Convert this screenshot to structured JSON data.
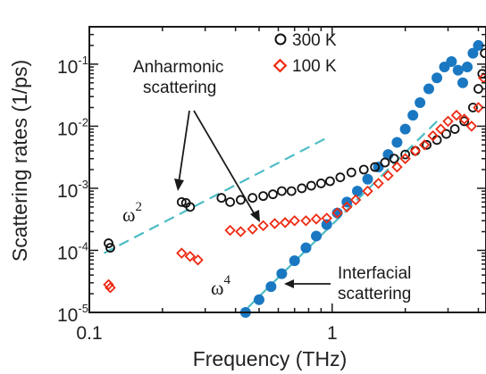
{
  "chart_data": {
    "type": "scatter",
    "xscale": "log",
    "yscale": "log",
    "xlim": [
      0.1,
      4.3
    ],
    "ylim": [
      1e-05,
      0.4
    ],
    "xlabel": "Frequency (THz)",
    "ylabel": "Scattering rates (1/ps)",
    "x_tick_labels": [
      "0.1",
      "1"
    ],
    "y_tick_labels": [
      {
        "base": "10",
        "exp": "-5"
      },
      {
        "base": "10",
        "exp": "-4"
      },
      {
        "base": "10",
        "exp": "-3"
      },
      {
        "base": "10",
        "exp": "-2"
      },
      {
        "base": "10",
        "exp": "-1"
      }
    ],
    "legend": {
      "position": "top-center"
    },
    "series": [
      {
        "name": "300 K",
        "marker": "open-circle",
        "color": "#111111",
        "points": [
          [
            0.12,
            0.00013
          ],
          [
            0.122,
            0.00011
          ],
          [
            0.24,
            0.0006
          ],
          [
            0.25,
            0.00058
          ],
          [
            0.26,
            0.0005
          ],
          [
            0.35,
            0.0007
          ],
          [
            0.38,
            0.0006
          ],
          [
            0.42,
            0.00065
          ],
          [
            0.47,
            0.0007
          ],
          [
            0.52,
            0.00075
          ],
          [
            0.57,
            0.0008
          ],
          [
            0.62,
            0.0009
          ],
          [
            0.68,
            0.0009
          ],
          [
            0.75,
            0.001
          ],
          [
            0.82,
            0.0011
          ],
          [
            0.9,
            0.0012
          ],
          [
            0.98,
            0.0013
          ],
          [
            1.08,
            0.0015
          ],
          [
            1.2,
            0.0018
          ],
          [
            1.35,
            0.002
          ],
          [
            1.5,
            0.0022
          ],
          [
            1.65,
            0.0026
          ],
          [
            1.8,
            0.003
          ],
          [
            2.0,
            0.0035
          ],
          [
            2.2,
            0.004
          ],
          [
            2.45,
            0.005
          ],
          [
            2.7,
            0.006
          ],
          [
            2.95,
            0.0075
          ],
          [
            3.2,
            0.009
          ],
          [
            3.5,
            0.012
          ],
          [
            3.8,
            0.02
          ],
          [
            4.0,
            0.04
          ],
          [
            4.15,
            0.07
          ],
          [
            4.25,
            0.15
          ]
        ]
      },
      {
        "name": "100 K",
        "marker": "open-diamond",
        "color": "#ee2a12",
        "points": [
          [
            0.12,
            2.8e-05
          ],
          [
            0.122,
            2.5e-05
          ],
          [
            0.24,
            9e-05
          ],
          [
            0.26,
            8e-05
          ],
          [
            0.28,
            7e-05
          ],
          [
            0.38,
            0.00021
          ],
          [
            0.42,
            0.0002
          ],
          [
            0.47,
            0.00022
          ],
          [
            0.52,
            0.00025
          ],
          [
            0.58,
            0.00027
          ],
          [
            0.64,
            0.00028
          ],
          [
            0.7,
            0.0003
          ],
          [
            0.78,
            0.0003
          ],
          [
            0.86,
            0.00032
          ],
          [
            0.95,
            0.00033
          ],
          [
            1.05,
            0.0004
          ],
          [
            1.15,
            0.0005
          ],
          [
            1.25,
            0.00065
          ],
          [
            1.4,
            0.0009
          ],
          [
            1.55,
            0.0012
          ],
          [
            1.7,
            0.0016
          ],
          [
            1.85,
            0.0022
          ],
          [
            2.0,
            0.003
          ],
          [
            2.2,
            0.004
          ],
          [
            2.4,
            0.005
          ],
          [
            2.6,
            0.007
          ],
          [
            2.8,
            0.009
          ],
          [
            3.0,
            0.012
          ],
          [
            3.25,
            0.015
          ],
          [
            3.5,
            0.013
          ],
          [
            3.75,
            0.01
          ],
          [
            4.0,
            0.02
          ],
          [
            4.2,
            0.06
          ]
        ]
      },
      {
        "name": "",
        "marker": "filled-circle",
        "color": "#1a78c2",
        "points": [
          [
            0.44,
            1e-05
          ],
          [
            0.5,
            1.6e-05
          ],
          [
            0.56,
            2.6e-05
          ],
          [
            0.62,
            4.2e-05
          ],
          [
            0.7,
            6.8e-05
          ],
          [
            0.78,
            0.00011
          ],
          [
            0.86,
            0.00017
          ],
          [
            0.95,
            0.00026
          ],
          [
            1.05,
            0.0004
          ],
          [
            1.15,
            0.0006
          ],
          [
            1.27,
            0.0009
          ],
          [
            1.4,
            0.0014
          ],
          [
            1.55,
            0.0022
          ],
          [
            1.7,
            0.0035
          ],
          [
            1.85,
            0.0055
          ],
          [
            2.0,
            0.009
          ],
          [
            2.15,
            0.015
          ],
          [
            2.3,
            0.024
          ],
          [
            2.5,
            0.04
          ],
          [
            2.7,
            0.06
          ],
          [
            2.9,
            0.09
          ],
          [
            3.1,
            0.11
          ],
          [
            3.3,
            0.08
          ],
          [
            3.45,
            0.05
          ],
          [
            3.6,
            0.09
          ],
          [
            3.8,
            0.15
          ],
          [
            4.0,
            0.2
          ]
        ]
      }
    ],
    "reference_lines": [
      {
        "label_base": "ω",
        "label_exp": "2",
        "slope": 2,
        "color": "#4cbcc4",
        "style": "dashed",
        "x": [
          0.115,
          0.95
        ],
        "y": [
          9e-05,
          0.0065
        ]
      },
      {
        "label_base": "ω",
        "label_exp": "4",
        "slope": 4,
        "color": "#4cbcc4",
        "style": "dashed",
        "x": [
          0.45,
          2.7
        ],
        "y": [
          1.2e-05,
          0.012
        ]
      }
    ],
    "annotations": [
      {
        "lines": [
          "Anharmonic",
          "scattering"
        ]
      },
      {
        "lines": [
          "Interfacial",
          "scattering"
        ]
      }
    ]
  }
}
